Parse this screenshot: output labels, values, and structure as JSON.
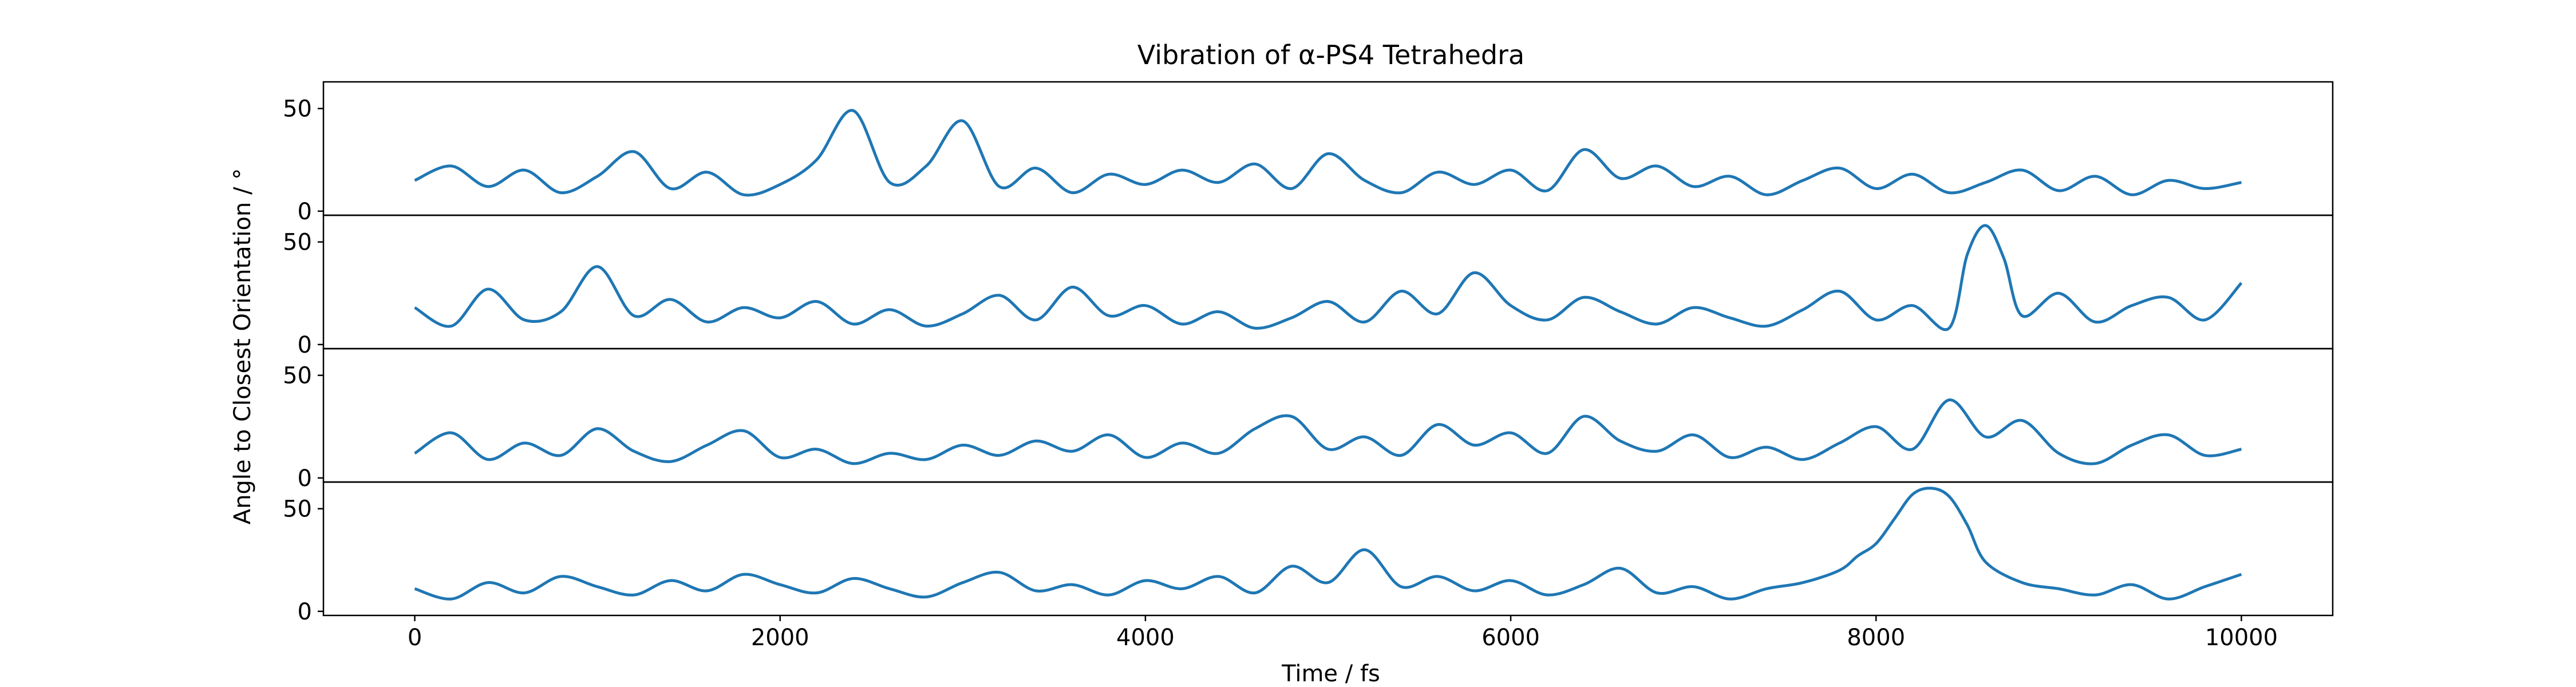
{
  "chart_data": {
    "type": "line",
    "title": "Vibration of α-PS4 Tetrahedra",
    "xlabel": "Time / fs",
    "ylabel": "Angle to Closest Orientation / °",
    "xlim": [
      -500,
      10500
    ],
    "x_ticks": [
      0,
      2000,
      4000,
      6000,
      8000,
      10000
    ],
    "x_tick_labels": [
      "0",
      "2000",
      "4000",
      "6000",
      "8000",
      "10000"
    ],
    "ylim": [
      -2,
      63
    ],
    "y_ticks": [
      0,
      50
    ],
    "y_tick_labels": [
      "0",
      "50"
    ],
    "grid": false,
    "line_color": "#1f77b4",
    "panels": [
      {
        "x": [
          0,
          200,
          400,
          600,
          800,
          1000,
          1200,
          1400,
          1600,
          1800,
          2000,
          2200,
          2400,
          2600,
          2800,
          3000,
          3200,
          3400,
          3600,
          3800,
          4000,
          4200,
          4400,
          4600,
          4800,
          5000,
          5200,
          5400,
          5600,
          5800,
          6000,
          6200,
          6400,
          6600,
          6800,
          7000,
          7200,
          7400,
          7600,
          7800,
          8000,
          8200,
          8400,
          8600,
          8800,
          9000,
          9200,
          9400,
          9600,
          9800,
          10000
        ],
        "values": [
          15,
          22,
          12,
          20,
          9,
          17,
          29,
          11,
          19,
          8,
          13,
          25,
          49,
          14,
          22,
          44,
          12,
          21,
          9,
          18,
          13,
          20,
          14,
          23,
          11,
          28,
          15,
          9,
          19,
          13,
          20,
          10,
          30,
          16,
          22,
          12,
          17,
          8,
          15,
          21,
          11,
          18,
          9,
          14,
          20,
          10,
          17,
          8,
          15,
          11,
          14
        ]
      },
      {
        "x": [
          0,
          200,
          400,
          600,
          800,
          1000,
          1200,
          1400,
          1600,
          1800,
          2000,
          2200,
          2400,
          2600,
          2800,
          3000,
          3200,
          3400,
          3600,
          3800,
          4000,
          4200,
          4400,
          4600,
          4800,
          5000,
          5200,
          5400,
          5600,
          5800,
          6000,
          6200,
          6400,
          6600,
          6800,
          7000,
          7200,
          7400,
          7600,
          7800,
          8000,
          8200,
          8400,
          8500,
          8600,
          8700,
          8800,
          9000,
          9200,
          9400,
          9600,
          9800,
          10000
        ],
        "values": [
          18,
          9,
          27,
          12,
          16,
          38,
          14,
          22,
          11,
          18,
          13,
          21,
          10,
          17,
          9,
          15,
          24,
          12,
          28,
          14,
          19,
          10,
          16,
          8,
          13,
          21,
          11,
          26,
          15,
          35,
          19,
          12,
          23,
          16,
          10,
          18,
          13,
          9,
          17,
          26,
          12,
          19,
          8,
          44,
          58,
          42,
          14,
          25,
          11,
          19,
          23,
          12,
          30
        ]
      },
      {
        "x": [
          0,
          200,
          400,
          600,
          800,
          1000,
          1200,
          1400,
          1600,
          1800,
          2000,
          2200,
          2400,
          2600,
          2800,
          3000,
          3200,
          3400,
          3600,
          3800,
          4000,
          4200,
          4400,
          4600,
          4800,
          5000,
          5200,
          5400,
          5600,
          5800,
          6000,
          6200,
          6400,
          6600,
          6800,
          7000,
          7200,
          7400,
          7600,
          7800,
          8000,
          8200,
          8400,
          8600,
          8800,
          9000,
          9200,
          9400,
          9600,
          9800,
          10000
        ],
        "values": [
          12,
          22,
          9,
          17,
          11,
          24,
          13,
          8,
          16,
          23,
          10,
          14,
          7,
          12,
          9,
          16,
          11,
          18,
          13,
          21,
          10,
          17,
          12,
          24,
          30,
          14,
          20,
          11,
          26,
          16,
          22,
          12,
          30,
          18,
          13,
          21,
          10,
          15,
          9,
          17,
          25,
          14,
          38,
          20,
          28,
          12,
          7,
          16,
          21,
          11,
          14
        ]
      },
      {
        "x": [
          0,
          200,
          400,
          600,
          800,
          1000,
          1200,
          1400,
          1600,
          1800,
          2000,
          2200,
          2400,
          2600,
          2800,
          3000,
          3200,
          3400,
          3600,
          3800,
          4000,
          4200,
          4400,
          4600,
          4800,
          5000,
          5200,
          5400,
          5600,
          5800,
          6000,
          6200,
          6400,
          6600,
          6800,
          7000,
          7200,
          7400,
          7600,
          7800,
          7900,
          8000,
          8100,
          8200,
          8300,
          8400,
          8500,
          8600,
          8800,
          9000,
          9200,
          9400,
          9600,
          9800,
          10000
        ],
        "values": [
          11,
          6,
          14,
          9,
          17,
          12,
          8,
          15,
          10,
          18,
          13,
          9,
          16,
          11,
          7,
          14,
          19,
          10,
          13,
          8,
          15,
          11,
          17,
          9,
          22,
          14,
          30,
          12,
          17,
          10,
          15,
          8,
          13,
          21,
          9,
          12,
          6,
          11,
          14,
          20,
          27,
          33,
          45,
          57,
          60,
          56,
          42,
          24,
          14,
          11,
          8,
          13,
          6,
          12,
          18
        ]
      }
    ]
  }
}
